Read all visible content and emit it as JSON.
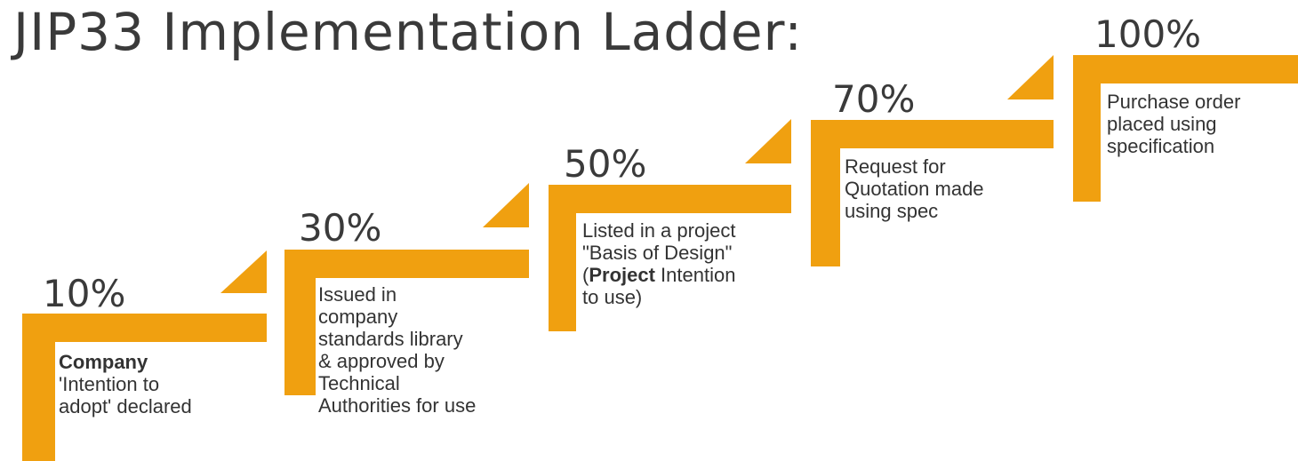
{
  "title": "JIP33 Implementation Ladder:",
  "colors": {
    "accent": "#f0a010",
    "text": "#3a3a3a"
  },
  "steps": [
    {
      "percent": "10%",
      "bold": "Company",
      "text": "\n'Intention to\nadopt' declared"
    },
    {
      "percent": "30%",
      "bold": "",
      "text": "Issued in\ncompany\nstandards library\n& approved by\nTechnical\nAuthorities for use"
    },
    {
      "percent": "50%",
      "bold": "",
      "text": "Listed in a project\n\"Basis of Design\"\n(",
      "bold2": "Project",
      "text2": " Intention\nto use)"
    },
    {
      "percent": "70%",
      "bold": "",
      "text": "Request for\nQuotation made\nusing spec"
    },
    {
      "percent": "100%",
      "bold": "",
      "text": "Purchase order\nplaced using\nspecification"
    }
  ]
}
